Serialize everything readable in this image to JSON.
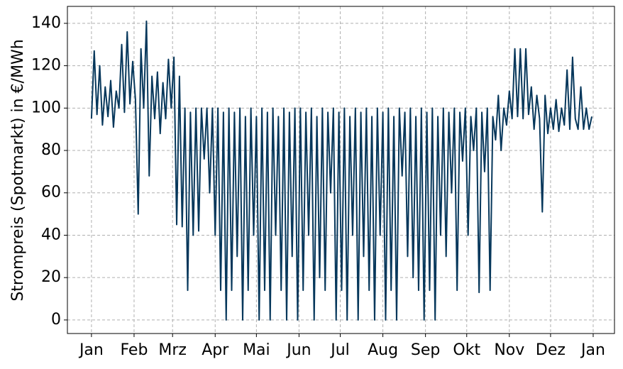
{
  "chart_data": {
    "type": "line",
    "y_label": "Strompreis (Spotmarkt) in €/MWh",
    "x": [
      0,
      2,
      4,
      6,
      8,
      10,
      12,
      14,
      16,
      18,
      20,
      22,
      24,
      26,
      28,
      30,
      32,
      34,
      36,
      38,
      40,
      42,
      44,
      46,
      48,
      50,
      52,
      54,
      56,
      58,
      60,
      62,
      64,
      66,
      68,
      70,
      72,
      74,
      76,
      78,
      80,
      82,
      84,
      86,
      88,
      90,
      92,
      94,
      96,
      98,
      100,
      102,
      104,
      106,
      108,
      110,
      112,
      114,
      116,
      118,
      120,
      122,
      124,
      126,
      128,
      130,
      132,
      134,
      136,
      138,
      140,
      142,
      144,
      146,
      148,
      150,
      152,
      154,
      156,
      158,
      160,
      162,
      164,
      166,
      168,
      170,
      172,
      174,
      176,
      178,
      180,
      182,
      184,
      186,
      188,
      190,
      192,
      194,
      196,
      198,
      200,
      202,
      204,
      206,
      208,
      210,
      212,
      214,
      216,
      218,
      220,
      222,
      224,
      226,
      228,
      230,
      232,
      234,
      236,
      238,
      240,
      242,
      244,
      246,
      248,
      250,
      252,
      254,
      256,
      258,
      260,
      262,
      264,
      266,
      268,
      270,
      272,
      274,
      276,
      278,
      280,
      282,
      284,
      286,
      288,
      290,
      292,
      294,
      296,
      298,
      300,
      302,
      304,
      306,
      308,
      310,
      312,
      314,
      316,
      318,
      320,
      322,
      324,
      326,
      328,
      330,
      332,
      334,
      336,
      338,
      340,
      342,
      344,
      346,
      348,
      350,
      352,
      354,
      356,
      358,
      360,
      362,
      364
    ],
    "series": [
      {
        "color": "#06375b",
        "values": [
          95,
          127,
          97,
          120,
          92,
          110,
          96,
          113,
          91,
          108,
          100,
          130,
          98,
          136,
          102,
          122,
          104,
          50,
          128,
          100,
          141,
          68,
          115,
          95,
          117,
          88,
          112,
          95,
          123,
          100,
          124,
          45,
          115,
          44,
          100,
          14,
          98,
          40,
          100,
          42,
          100,
          76,
          100,
          60,
          100,
          40,
          100,
          14,
          98,
          0,
          100,
          14,
          98,
          30,
          100,
          0,
          96,
          14,
          100,
          40,
          96,
          0,
          100,
          14,
          98,
          0,
          100,
          40,
          96,
          14,
          100,
          0,
          98,
          30,
          100,
          0,
          100,
          14,
          98,
          40,
          100,
          0,
          96,
          20,
          100,
          14,
          98,
          60,
          100,
          0,
          98,
          14,
          100,
          0,
          96,
          40,
          100,
          0,
          98,
          30,
          100,
          14,
          96,
          0,
          100,
          40,
          98,
          0,
          100,
          14,
          96,
          0,
          100,
          68,
          98,
          30,
          100,
          20,
          96,
          14,
          100,
          0,
          98,
          14,
          100,
          0,
          96,
          40,
          100,
          30,
          98,
          60,
          100,
          14,
          98,
          75,
          100,
          40,
          96,
          80,
          100,
          13,
          98,
          70,
          100,
          14,
          96,
          85,
          106,
          80,
          100,
          92,
          108,
          95,
          128,
          96,
          128,
          95,
          128,
          97,
          110,
          90,
          106,
          95,
          51,
          106,
          88,
          100,
          90,
          104,
          89,
          100,
          92,
          118,
          90,
          124,
          95,
          90,
          110,
          90,
          100,
          90,
          96
        ]
      }
    ],
    "xlim": [
      -17.5,
      380.5
    ],
    "xticks": [
      {
        "value": 0,
        "label": "Jan"
      },
      {
        "value": 31,
        "label": "Feb"
      },
      {
        "value": 59,
        "label": "Mrz"
      },
      {
        "value": 90,
        "label": "Apr"
      },
      {
        "value": 120,
        "label": "Mai"
      },
      {
        "value": 151,
        "label": "Jun"
      },
      {
        "value": 181,
        "label": "Jul"
      },
      {
        "value": 212,
        "label": "Aug"
      },
      {
        "value": 243,
        "label": "Sep"
      },
      {
        "value": 273,
        "label": "Okt"
      },
      {
        "value": 304,
        "label": "Nov"
      },
      {
        "value": 334,
        "label": "Dez"
      },
      {
        "value": 365,
        "label": "Jan"
      }
    ],
    "ylim": [
      -6.4,
      148
    ],
    "yticks": [
      0,
      20,
      40,
      60,
      80,
      100,
      120,
      140
    ],
    "grid": true
  }
}
